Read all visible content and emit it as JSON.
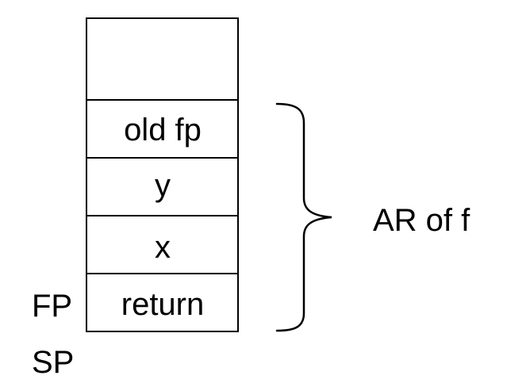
{
  "stack": {
    "cells": [
      {
        "label": ""
      },
      {
        "label": "old fp"
      },
      {
        "label": "y"
      },
      {
        "label": "x"
      },
      {
        "label": "return"
      }
    ]
  },
  "pointers": {
    "fp": "FP",
    "sp": "SP"
  },
  "brace": {
    "label": "AR of f"
  },
  "colors": {
    "stroke": "#000000",
    "background": "#ffffff"
  }
}
